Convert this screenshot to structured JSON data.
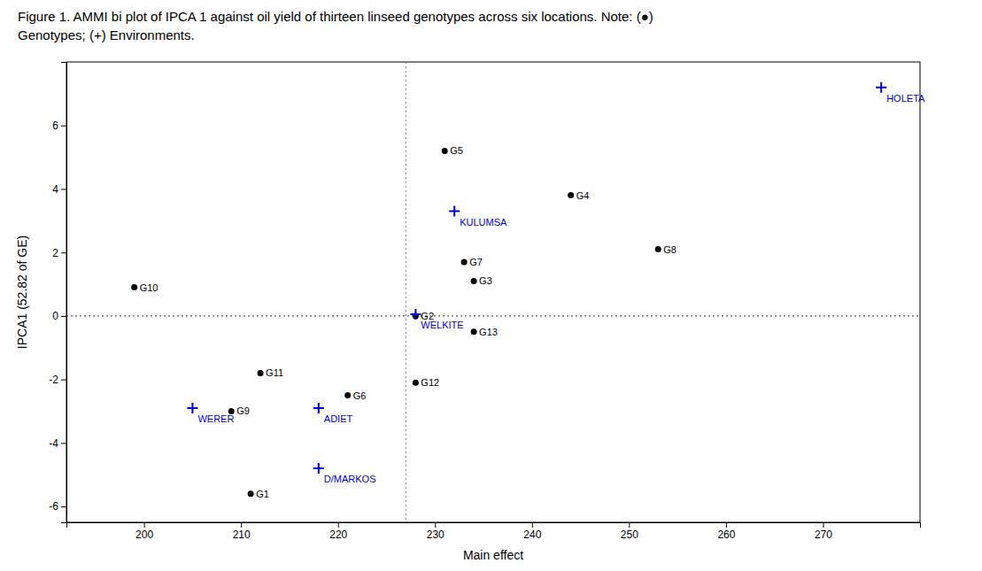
{
  "chart_data": {
    "type": "scatter",
    "title": "Figure 1. AMMI bi plot of IPCA 1 against oil yield of thirteen linseed genotypes across six locations. Note: (●)",
    "subtitle": "Genotypes; (+) Environments.",
    "x_label": "Main effect",
    "y_label": "IPCA1 (52.82 of GE)",
    "xlim": [
      192,
      280
    ],
    "ylim": [
      -6.5,
      8.0
    ],
    "xticks": [
      200,
      210,
      220,
      230,
      240,
      250,
      260,
      270
    ],
    "yticks": [
      -6,
      -4,
      -2,
      0,
      2,
      4,
      6
    ],
    "grid": false,
    "hline": 0,
    "vline": 227,
    "series": [
      {
        "color": "#000000",
        "marker": "circle",
        "labels": [
          "G1",
          "G3",
          "G4",
          "G5",
          "G6",
          "G7",
          "G8",
          "G9",
          "G10",
          "G11",
          "G12",
          "G13",
          "G2"
        ],
        "x": [
          211,
          234,
          244,
          231,
          221,
          233,
          253,
          209,
          199,
          212,
          228,
          234,
          228
        ],
        "values": [
          -5.6,
          1.1,
          3.8,
          5.2,
          -2.5,
          1.7,
          2.1,
          -3.0,
          0.9,
          -1.8,
          -2.1,
          -0.5,
          0.0
        ]
      },
      {
        "color": "#0000cc",
        "marker": "plus",
        "labels": [
          "HOLETA",
          "KULUMSA",
          "WELKITE",
          "WERER",
          "ADIET",
          "D/MARKOS"
        ],
        "x": [
          276,
          232,
          228,
          205,
          218,
          218
        ],
        "values": [
          7.2,
          3.3,
          0.05,
          -2.9,
          -2.9,
          -4.8
        ]
      }
    ]
  }
}
